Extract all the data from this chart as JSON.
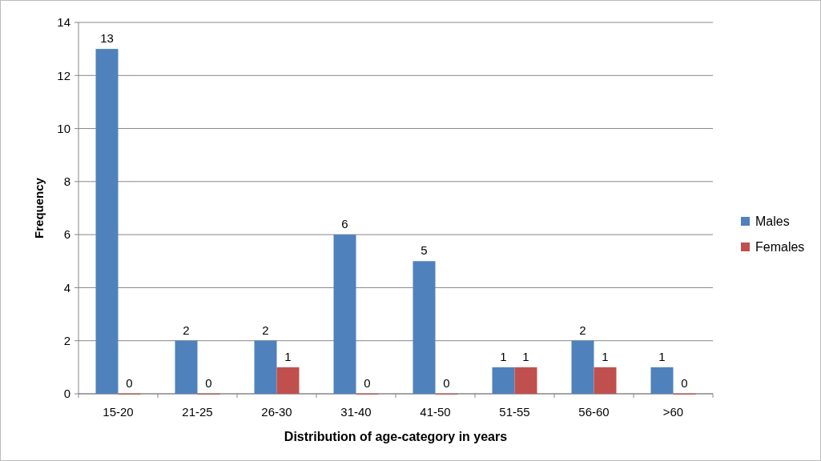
{
  "chart_data": {
    "type": "bar",
    "xlabel": "Distribution of age-category in years",
    "ylabel": "Frequency",
    "categories": [
      "15-20",
      "21-25",
      "26-30",
      "31-40",
      "41-50",
      "51-55",
      "56-60",
      ">60"
    ],
    "series": [
      {
        "name": "Males",
        "color": "#4f81bd",
        "values": [
          13,
          2,
          2,
          6,
          5,
          1,
          2,
          1
        ]
      },
      {
        "name": "Females",
        "color": "#c0504d",
        "values": [
          0,
          0,
          1,
          0,
          0,
          1,
          1,
          0
        ]
      }
    ],
    "ylim": [
      0,
      14
    ],
    "yticks": [
      0,
      2,
      4,
      6,
      8,
      10,
      12,
      14
    ],
    "grid": "y",
    "legend": "right",
    "data_labels": true
  }
}
